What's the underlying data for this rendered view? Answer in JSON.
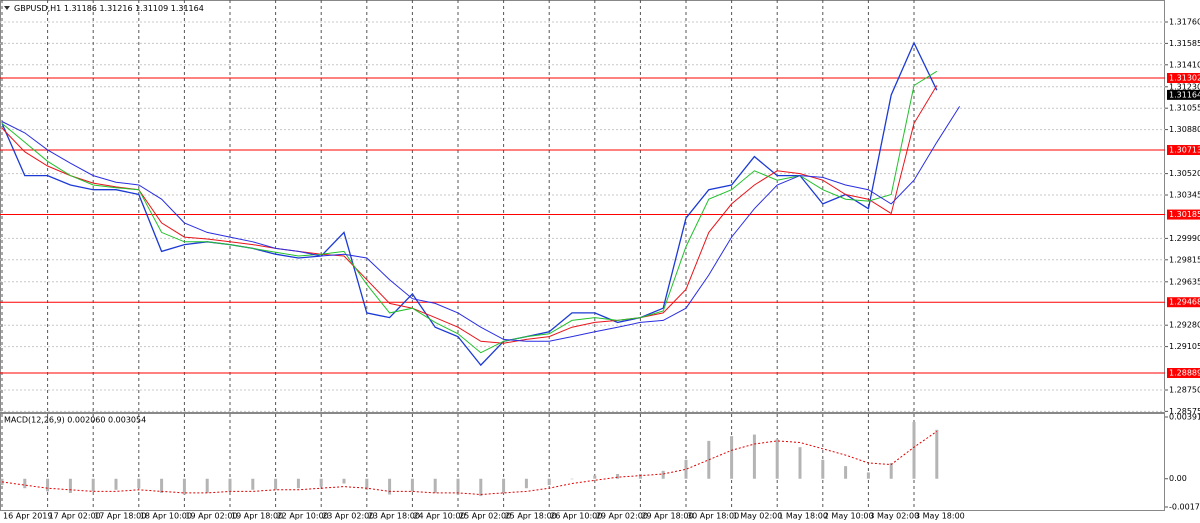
{
  "chart_data": [
    {
      "type": "line",
      "symbol": "GBPUSD,H1",
      "ohlc": [
        1.31186,
        1.31216,
        1.31109,
        1.31164
      ],
      "categories": [
        "16 Apr 2019",
        null,
        "17 Apr 02:00",
        null,
        "17 Apr 18:00",
        null,
        "18 Apr 10:00",
        null,
        "19 Apr 02:00",
        null,
        "19 Apr 18:00",
        null,
        "22 Apr 10:00",
        null,
        "23 Apr 02:00",
        null,
        "23 Apr 18:00",
        null,
        "24 Apr 10:00",
        null,
        "25 Apr 02:00",
        null,
        "25 Apr 18:00",
        null,
        "26 Apr 10:00",
        null,
        "29 Apr 02:00",
        null,
        "29 Apr 18:00",
        null,
        "30 Apr 18:00",
        null,
        "1 May 02:00",
        null,
        "1 May 18:00",
        null,
        "2 May 10:00",
        null,
        "3 May 02:00",
        null,
        "3 May 18:00",
        null,
        null
      ],
      "series": [
        {
          "color": "#1c3ad4",
          "values": [
            1.30931,
            1.30504,
            1.30504,
            1.30427,
            1.30388,
            1.30388,
            1.30349,
            1.29884,
            1.29939,
            1.29962,
            1.29939,
            1.29908,
            1.29861,
            1.2983,
            1.29846,
            1.30039,
            1.29381,
            1.29342,
            1.29536,
            1.29264,
            1.29187,
            1.28954,
            1.29148,
            1.29187,
            1.29226,
            1.29381,
            1.29381,
            1.29303,
            1.29342,
            1.29419,
            1.30156,
            1.30388,
            1.30427,
            1.30659,
            1.30504,
            1.30504,
            1.30272,
            1.30349,
            1.30233,
            1.31163,
            1.31589,
            1.31202,
            null
          ]
        },
        {
          "color": "#e8141a",
          "values": [
            1.30892,
            1.30698,
            1.30582,
            1.30504,
            1.30442,
            1.30411,
            1.30388,
            1.30117,
            1.30001,
            1.29985,
            1.29962,
            1.29939,
            1.29908,
            1.29884,
            1.29861,
            1.29846,
            1.29652,
            1.29458,
            1.29419,
            1.29342,
            1.29264,
            1.29148,
            1.29133,
            1.29164,
            1.29187,
            1.29264,
            1.29303,
            1.29319,
            1.29342,
            1.29381,
            1.29574,
            1.30039,
            1.30272,
            1.30427,
            1.30543,
            1.3052,
            1.30466,
            1.30349,
            1.30311,
            1.30194,
            1.30931,
            1.31241,
            null
          ]
        },
        {
          "color": "#22c02c",
          "values": [
            1.30931,
            1.30776,
            1.30621,
            1.30504,
            1.30427,
            1.30404,
            1.30388,
            1.30039,
            1.29962,
            1.29962,
            1.29939,
            1.29908,
            1.29877,
            1.29846,
            1.29861,
            1.29884,
            1.29613,
            1.29381,
            1.29419,
            1.29303,
            1.2921,
            1.29055,
            1.29148,
            1.29187,
            1.2921,
            1.29319,
            1.29342,
            1.29319,
            1.29342,
            1.29396,
            1.29923,
            1.30311,
            1.30388,
            1.30543,
            1.30466,
            1.30504,
            1.30388,
            1.30311,
            1.30295,
            1.30349,
            1.31241,
            1.31357,
            null
          ]
        },
        {
          "color": "#2a2ee0",
          "values": [
            1.30946,
            1.30853,
            1.30714,
            1.30605,
            1.30504,
            1.3045,
            1.30427,
            1.30311,
            1.30117,
            1.30039,
            1.30001,
            1.29962,
            1.29908,
            1.29884,
            1.29846,
            1.29861,
            1.2983,
            1.29652,
            1.29497,
            1.29458,
            1.29381,
            1.29264,
            1.29164,
            1.29148,
            1.29148,
            1.29187,
            1.29226,
            1.29264,
            1.29303,
            1.29319,
            1.29419,
            1.29691,
            1.30001,
            1.30233,
            1.30427,
            1.30504,
            1.30489,
            1.30427,
            1.30388,
            1.30272,
            1.30466,
            1.30776,
            1.3107
          ]
        }
      ],
      "ylim": [
        1.2857,
        1.3194
      ],
      "yticks": [
        {
          "value": 1.3176,
          "label": "1.31760"
        },
        1.31585,
        {
          "value": 1.3141,
          "label": "1.31410"
        },
        {
          "value": 1.3123,
          "label": "1.31230"
        },
        1.31055,
        {
          "value": 1.3088,
          "label": "1.30880"
        },
        {
          "value": 1.3052,
          "label": "1.30520"
        },
        1.30345,
        {
          "value": 1.2999,
          "label": "1.29990"
        },
        1.29815,
        1.29635,
        {
          "value": 1.2928,
          "label": "1.29280"
        },
        1.29105,
        {
          "value": 1.2875,
          "label": "1.28750"
        },
        1.28575
      ],
      "levels": [
        1.31302,
        1.30713,
        1.30185,
        1.29468,
        1.28889
      ],
      "level_color": "#ff0000",
      "last_price": 1.31164,
      "grid": true
    },
    {
      "type": "bar",
      "title": "MACD(12,26,9) 0.002060 0.003054",
      "series": [
        {
          "type": "bar",
          "color": "#b4b4b4",
          "values": [
            -0.0004,
            -0.0006,
            -0.0008,
            -0.0009,
            -0.0008,
            -0.0007,
            -0.0006,
            -0.0009,
            -0.001,
            -0.0009,
            -0.0008,
            -0.0007,
            -0.0007,
            -0.0006,
            -0.0005,
            -0.0003,
            -0.0007,
            -0.001,
            -0.0008,
            -0.0009,
            -0.001,
            -0.0011,
            -0.0009,
            -0.0006,
            -0.0004,
            0,
            0.0002,
            0.0003,
            0.0003,
            0.0005,
            0.0012,
            0.0024,
            0.0027,
            0.0028,
            0.0025,
            0.002,
            0.0012,
            0.0008,
            0.0004,
            0.001,
            0.0036,
            0.0031,
            null
          ]
        },
        {
          "type": "line",
          "color": "#e00000",
          "values": [
            -0.0002,
            -0.0004,
            -0.0006,
            -0.0007,
            -0.0008,
            -0.0008,
            -0.0007,
            -0.0008,
            -0.0009,
            -0.0009,
            -0.0008,
            -0.0008,
            -0.0007,
            -0.0007,
            -0.0006,
            -0.0005,
            -0.0006,
            -0.0008,
            -0.0008,
            -0.0009,
            -0.0009,
            -0.001,
            -0.0009,
            -0.0008,
            -0.0006,
            -0.0003,
            -0.0001,
            0.0001,
            0.0002,
            0.0003,
            0.0006,
            0.0012,
            0.0018,
            0.0022,
            0.0024,
            0.0023,
            0.0019,
            0.0015,
            0.001,
            0.0009,
            0.002,
            0.003,
            null
          ]
        }
      ],
      "ylim": [
        -0.001791,
        0.003914
      ],
      "yticks": [
        0.003914,
        {
          "value": 0,
          "label": "0.00"
        },
        -0.001791
      ]
    }
  ]
}
